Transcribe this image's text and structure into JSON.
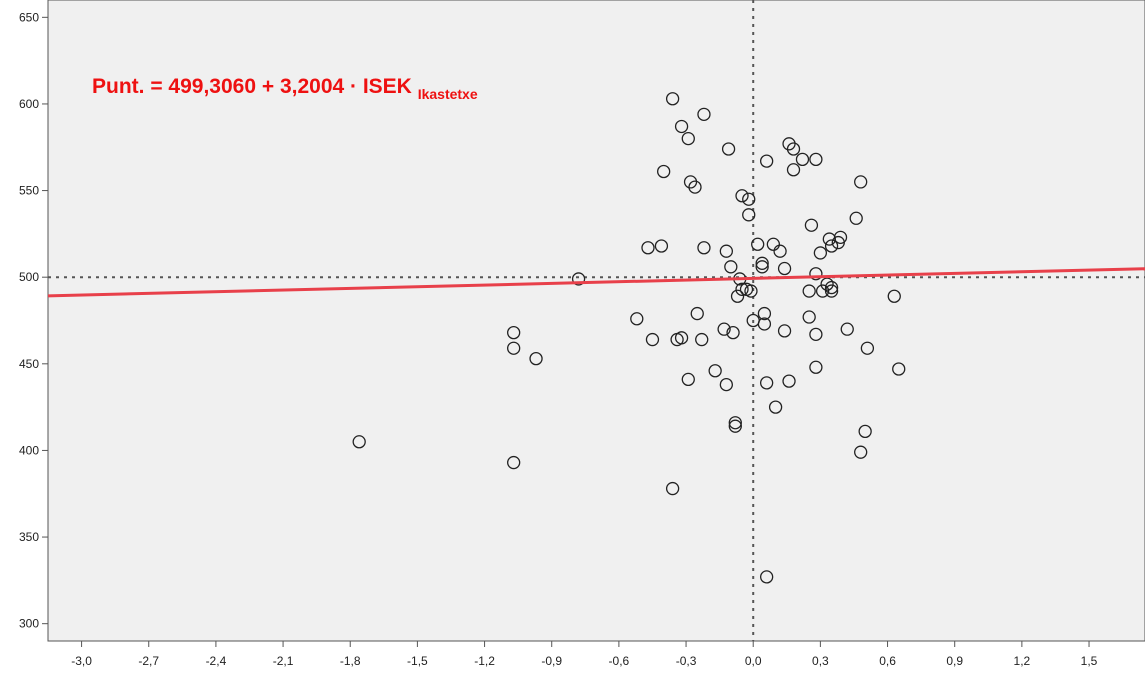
{
  "chart_data": {
    "type": "scatter",
    "title": "",
    "xlabel": "",
    "ylabel": "",
    "xlim": [
      -3.15,
      1.75
    ],
    "ylim": [
      290,
      660
    ],
    "x_ticks": [
      -3.0,
      -2.7,
      -2.4,
      -2.1,
      -1.8,
      -1.5,
      -1.2,
      -0.9,
      -0.6,
      -0.3,
      0.0,
      0.3,
      0.6,
      0.9,
      1.2,
      1.5
    ],
    "x_tick_labels": [
      "-3,0",
      "-2,7",
      "-2,4",
      "-2,1",
      "-1,8",
      "-1,5",
      "-1,2",
      "-0,9",
      "-0,6",
      "-0,3",
      "0,0",
      "0,3",
      "0,6",
      "0,9",
      "1,2",
      "1,5"
    ],
    "y_ticks": [
      300,
      350,
      400,
      450,
      500,
      550,
      600,
      650
    ],
    "y_tick_labels": [
      "300",
      "350",
      "400",
      "450",
      "500",
      "550",
      "600",
      "650"
    ],
    "reference_lines": {
      "x": 0.0,
      "y": 500
    },
    "fit_line": {
      "intercept": 499.306,
      "slope": 3.2004
    },
    "annotation": {
      "main": "Punt. = 499,3060 + 3,2004 · ISEK",
      "subscript": "Ikastetxe"
    },
    "points": [
      [
        -1.76,
        405
      ],
      [
        -1.07,
        393
      ],
      [
        -1.07,
        459
      ],
      [
        -1.07,
        468
      ],
      [
        -0.97,
        453
      ],
      [
        -0.78,
        499
      ],
      [
        -0.52,
        476
      ],
      [
        -0.47,
        517
      ],
      [
        -0.45,
        464
      ],
      [
        -0.41,
        518
      ],
      [
        -0.4,
        561
      ],
      [
        -0.36,
        603
      ],
      [
        -0.36,
        378
      ],
      [
        -0.34,
        464
      ],
      [
        -0.32,
        465
      ],
      [
        -0.32,
        587
      ],
      [
        -0.29,
        580
      ],
      [
        -0.29,
        441
      ],
      [
        -0.28,
        555
      ],
      [
        -0.26,
        552
      ],
      [
        -0.25,
        479
      ],
      [
        -0.23,
        464
      ],
      [
        -0.22,
        594
      ],
      [
        -0.22,
        517
      ],
      [
        -0.17,
        446
      ],
      [
        -0.13,
        470
      ],
      [
        -0.12,
        515
      ],
      [
        -0.12,
        438
      ],
      [
        -0.11,
        574
      ],
      [
        -0.1,
        506
      ],
      [
        -0.09,
        468
      ],
      [
        -0.08,
        416
      ],
      [
        -0.08,
        414
      ],
      [
        -0.07,
        489
      ],
      [
        -0.06,
        499
      ],
      [
        -0.05,
        547
      ],
      [
        -0.05,
        493
      ],
      [
        -0.03,
        493
      ],
      [
        -0.02,
        536
      ],
      [
        -0.02,
        545
      ],
      [
        -0.01,
        492
      ],
      [
        0.0,
        475
      ],
      [
        0.02,
        519
      ],
      [
        0.04,
        506
      ],
      [
        0.04,
        508
      ],
      [
        0.05,
        479
      ],
      [
        0.05,
        473
      ],
      [
        0.06,
        567
      ],
      [
        0.06,
        439
      ],
      [
        0.06,
        327
      ],
      [
        0.09,
        519
      ],
      [
        0.1,
        425
      ],
      [
        0.12,
        515
      ],
      [
        0.14,
        505
      ],
      [
        0.14,
        469
      ],
      [
        0.16,
        577
      ],
      [
        0.16,
        440
      ],
      [
        0.18,
        574
      ],
      [
        0.18,
        562
      ],
      [
        0.22,
        568
      ],
      [
        0.25,
        477
      ],
      [
        0.25,
        492
      ],
      [
        0.26,
        530
      ],
      [
        0.28,
        568
      ],
      [
        0.28,
        502
      ],
      [
        0.28,
        448
      ],
      [
        0.28,
        467
      ],
      [
        0.3,
        514
      ],
      [
        0.31,
        492
      ],
      [
        0.33,
        496
      ],
      [
        0.34,
        522
      ],
      [
        0.35,
        518
      ],
      [
        0.35,
        494
      ],
      [
        0.35,
        492
      ],
      [
        0.38,
        520
      ],
      [
        0.39,
        523
      ],
      [
        0.42,
        470
      ],
      [
        0.46,
        534
      ],
      [
        0.48,
        555
      ],
      [
        0.48,
        399
      ],
      [
        0.5,
        411
      ],
      [
        0.51,
        459
      ],
      [
        0.63,
        489
      ],
      [
        0.65,
        447
      ]
    ]
  }
}
